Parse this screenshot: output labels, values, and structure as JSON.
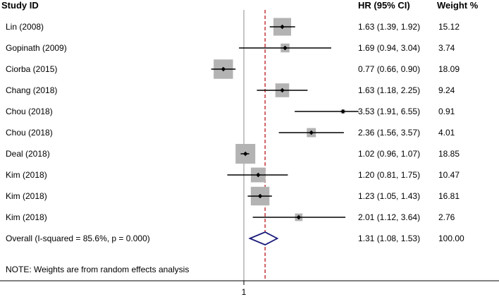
{
  "headers": {
    "study": "Study ID",
    "hr": "HR (95% CI)",
    "weight": "Weight %"
  },
  "note": "NOTE: Weights are from random effects analysis",
  "chart_data": {
    "type": "forest",
    "x_tick_labels": [
      "1"
    ],
    "reference_line": 1,
    "overall_line": 1.31,
    "xlim": [
      0.65,
      4.3
    ],
    "x_scale": "log",
    "studies": [
      {
        "label": "Lin (2008)",
        "hr": 1.63,
        "lo": 1.39,
        "hi": 1.92,
        "hr_text": "1.63 (1.39, 1.92)",
        "weight": 15.12,
        "weight_text": "15.12"
      },
      {
        "label": "Gopinath (2009)",
        "hr": 1.69,
        "lo": 0.94,
        "hi": 3.04,
        "hr_text": "1.69 (0.94, 3.04)",
        "weight": 3.74,
        "weight_text": "3.74"
      },
      {
        "label": "Ciorba (2015)",
        "hr": 0.77,
        "lo": 0.66,
        "hi": 0.9,
        "hr_text": "0.77 (0.66, 0.90)",
        "weight": 18.09,
        "weight_text": "18.09"
      },
      {
        "label": "Chang (2018)",
        "hr": 1.63,
        "lo": 1.18,
        "hi": 2.25,
        "hr_text": "1.63 (1.18, 2.25)",
        "weight": 9.24,
        "weight_text": "9.24"
      },
      {
        "label": "Chou (2018)",
        "hr": 3.53,
        "lo": 1.91,
        "hi": 6.55,
        "hr_text": "3.53 (1.91, 6.55)",
        "weight": 0.91,
        "weight_text": "0.91"
      },
      {
        "label": "Chou (2018)",
        "hr": 2.36,
        "lo": 1.56,
        "hi": 3.57,
        "hr_text": "2.36 (1.56, 3.57)",
        "weight": 4.01,
        "weight_text": "4.01"
      },
      {
        "label": "Deal (2018)",
        "hr": 1.02,
        "lo": 0.96,
        "hi": 1.07,
        "hr_text": "1.02 (0.96, 1.07)",
        "weight": 18.85,
        "weight_text": "18.85"
      },
      {
        "label": "Kim (2018)",
        "hr": 1.2,
        "lo": 0.81,
        "hi": 1.75,
        "hr_text": "1.20 (0.81, 1.75)",
        "weight": 10.47,
        "weight_text": "10.47"
      },
      {
        "label": "Kim (2018)",
        "hr": 1.23,
        "lo": 1.05,
        "hi": 1.43,
        "hr_text": "1.23 (1.05, 1.43)",
        "weight": 16.81,
        "weight_text": "16.81"
      },
      {
        "label": "Kim (2018)",
        "hr": 2.01,
        "lo": 1.12,
        "hi": 3.64,
        "hr_text": "2.01 (1.12, 3.64)",
        "weight": 2.76,
        "weight_text": "2.76"
      }
    ],
    "overall": {
      "label": "Overall (I-squared = 85.6%, p = 0.000)",
      "hr": 1.31,
      "lo": 1.08,
      "hi": 1.53,
      "hr_text": "1.31 (1.08, 1.53)",
      "weight_text": "100.00"
    },
    "colors": {
      "box": "#b3b3b3",
      "ci": "#000000",
      "point": "#000000",
      "overall_line": "#c0282d",
      "diamond": "#1b1b7a",
      "ref_line": "#8c8c8c"
    }
  }
}
